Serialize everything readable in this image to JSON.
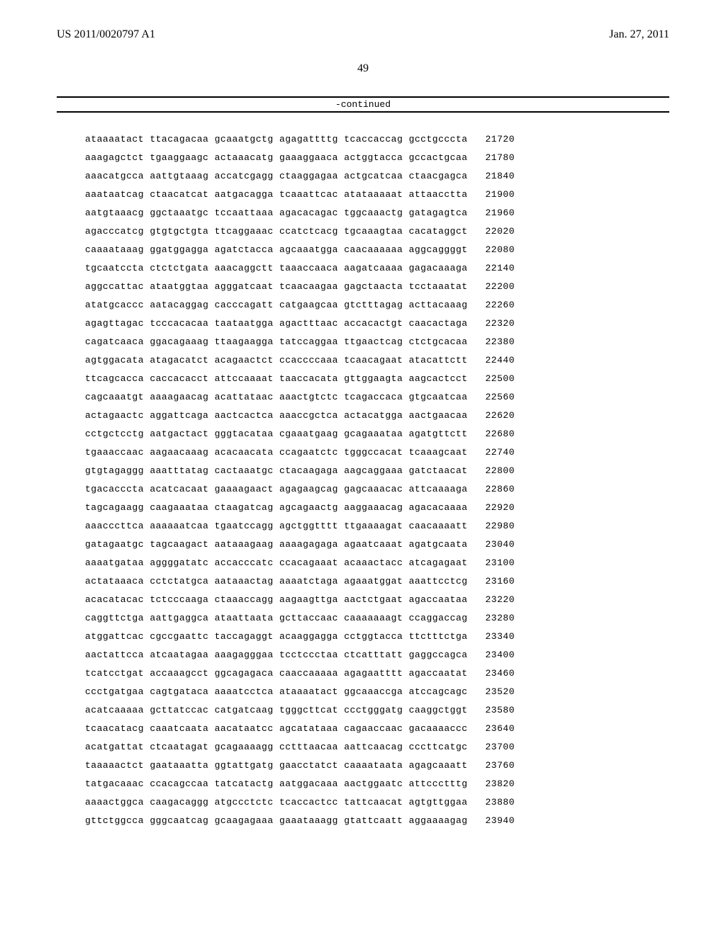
{
  "header": {
    "left": "US 2011/0020797 A1",
    "right": "Jan. 27, 2011"
  },
  "page_number": "49",
  "continued": "-continued",
  "sequence": {
    "rows": [
      {
        "seq": "ataaaatact ttacagacaa gcaaatgctg agagattttg tcaccaccag gcctgcccta",
        "pos": "21720"
      },
      {
        "seq": "aaagagctct tgaaggaagc actaaacatg gaaaggaaca actggtacca gccactgcaa",
        "pos": "21780"
      },
      {
        "seq": "aaacatgcca aattgtaaag accatcgagg ctaaggagaa actgcatcaa ctaacgagca",
        "pos": "21840"
      },
      {
        "seq": "aaataatcag ctaacatcat aatgacagga tcaaattcac atataaaaat attaacctta",
        "pos": "21900"
      },
      {
        "seq": "aatgtaaacg ggctaaatgc tccaattaaa agacacagac tggcaaactg gatagagtca",
        "pos": "21960"
      },
      {
        "seq": "agacccatcg gtgtgctgta ttcaggaaac ccatctcacg tgcaaagtaa cacataggct",
        "pos": "22020"
      },
      {
        "seq": "caaaataaag ggatggagga agatctacca agcaaatgga caacaaaaaa aggcaggggt",
        "pos": "22080"
      },
      {
        "seq": "tgcaatccta ctctctgata aaacaggctt taaaccaaca aagatcaaaa gagacaaaga",
        "pos": "22140"
      },
      {
        "seq": "aggccattac ataatggtaa agggatcaat tcaacaagaa gagctaacta tcctaaatat",
        "pos": "22200"
      },
      {
        "seq": "atatgcaccc aatacaggag cacccagatt catgaagcaa gtctttagag acttacaaag",
        "pos": "22260"
      },
      {
        "seq": "agagttagac tcccacacaa taataatgga agactttaac accacactgt caacactaga",
        "pos": "22320"
      },
      {
        "seq": "cagatcaaca ggacagaaag ttaagaagga tatccaggaa ttgaactcag ctctgcacaa",
        "pos": "22380"
      },
      {
        "seq": "agtggacata atagacatct acagaactct ccaccccaaa tcaacagaat atacattctt",
        "pos": "22440"
      },
      {
        "seq": "ttcagcacca caccacacct attccaaaat taaccacata gttggaagta aagcactcct",
        "pos": "22500"
      },
      {
        "seq": "cagcaaatgt aaaagaacag acattataac aaactgtctc tcagaccaca gtgcaatcaa",
        "pos": "22560"
      },
      {
        "seq": "actagaactc aggattcaga aactcactca aaaccgctca actacatgga aactgaacaa",
        "pos": "22620"
      },
      {
        "seq": "cctgctcctg aatgactact gggtacataa cgaaatgaag gcagaaataa agatgttctt",
        "pos": "22680"
      },
      {
        "seq": "tgaaaccaac aagaacaaag acacaacata ccagaatctc tgggccacat tcaaagcaat",
        "pos": "22740"
      },
      {
        "seq": "gtgtagaggg aaatttatag cactaaatgc ctacaagaga aagcaggaaa gatctaacat",
        "pos": "22800"
      },
      {
        "seq": "tgacacccta acatcacaat gaaaagaact agagaagcag gagcaaacac attcaaaaga",
        "pos": "22860"
      },
      {
        "seq": "tagcagaagg caagaaataa ctaagatcag agcagaactg aaggaaacag agacacaaaa",
        "pos": "22920"
      },
      {
        "seq": "aaacccttca aaaaaatcaa tgaatccagg agctggtttt ttgaaaagat caacaaaatt",
        "pos": "22980"
      },
      {
        "seq": "gatagaatgc tagcaagact aataaagaag aaaagagaga agaatcaaat agatgcaata",
        "pos": "23040"
      },
      {
        "seq": "aaaatgataa aggggatatc accacccatc ccacagaaat acaaactacc atcagagaat",
        "pos": "23100"
      },
      {
        "seq": "actataaaca cctctatgca aataaactag aaaatctaga agaaatggat aaattcctcg",
        "pos": "23160"
      },
      {
        "seq": "acacatacac tctcccaaga ctaaaccagg aagaagttga aactctgaat agaccaataa",
        "pos": "23220"
      },
      {
        "seq": "caggttctga aattgaggca ataattaata gcttaccaac caaaaaaagt ccaggaccag",
        "pos": "23280"
      },
      {
        "seq": "atggattcac cgccgaattc taccagaggt acaaggagga cctggtacca ttctttctga",
        "pos": "23340"
      },
      {
        "seq": "aactattcca atcaatagaa aaagagggaa tcctccctaa ctcatttatt gaggccagca",
        "pos": "23400"
      },
      {
        "seq": "tcatcctgat accaaagcct ggcagagaca caaccaaaaa agagaatttt agaccaatat",
        "pos": "23460"
      },
      {
        "seq": "ccctgatgaa cagtgataca aaaatcctca ataaaatact ggcaaaccga atccagcagc",
        "pos": "23520"
      },
      {
        "seq": "acatcaaaaa gcttatccac catgatcaag tgggcttcat ccctgggatg caaggctggt",
        "pos": "23580"
      },
      {
        "seq": "tcaacatacg caaatcaata aacataatcc agcatataaa cagaaccaac gacaaaaccc",
        "pos": "23640"
      },
      {
        "seq": "acatgattat ctcaatagat gcagaaaagg cctttaacaa aattcaacag cccttcatgc",
        "pos": "23700"
      },
      {
        "seq": "taaaaactct gaataaatta ggtattgatg gaacctatct caaaataata agagcaaatt",
        "pos": "23760"
      },
      {
        "seq": "tatgacaaac ccacagccaa tatcatactg aatggacaaa aactggaatc attccctttg",
        "pos": "23820"
      },
      {
        "seq": "aaaactggca caagacaggg atgccctctc tcaccactcc tattcaacat agtgttggaa",
        "pos": "23880"
      },
      {
        "seq": "gttctggcca gggcaatcag gcaagagaaa gaaataaagg gtattcaatt aggaaaagag",
        "pos": "23940"
      }
    ]
  },
  "fonts": {
    "serif": "Times New Roman",
    "mono": "Courier New"
  },
  "colors": {
    "text": "#000000",
    "background": "#ffffff",
    "rule": "#000000"
  }
}
